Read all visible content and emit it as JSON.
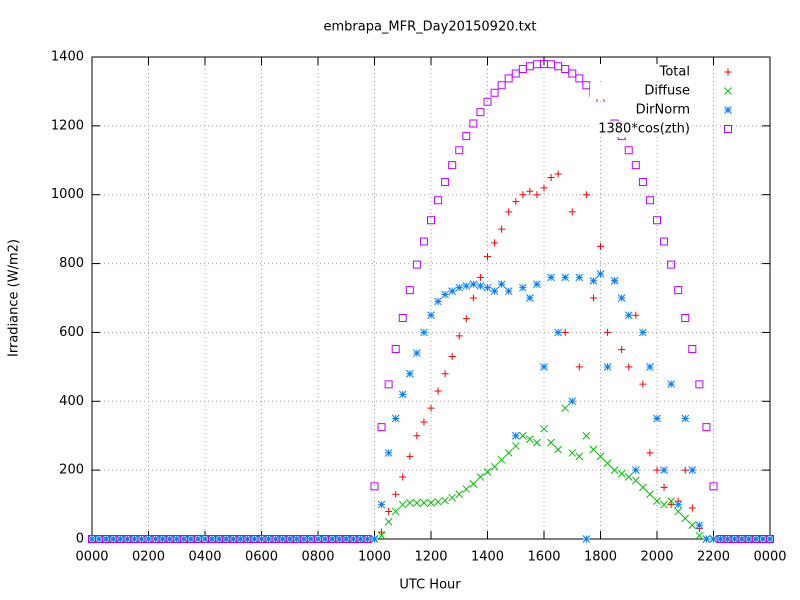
{
  "chart_data": {
    "type": "scatter",
    "title": "embrapa_MFR_Day20150920.txt",
    "xlabel": "UTC Hour",
    "ylabel": "Irradiance (W/m2)",
    "xlim": [
      0,
      24
    ],
    "ylim": [
      0,
      1400
    ],
    "xticks": [
      {
        "value": 0,
        "label": "0000"
      },
      {
        "value": 2,
        "label": "0200"
      },
      {
        "value": 4,
        "label": "0400"
      },
      {
        "value": 6,
        "label": "0600"
      },
      {
        "value": 8,
        "label": "0800"
      },
      {
        "value": 10,
        "label": "1000"
      },
      {
        "value": 12,
        "label": "1200"
      },
      {
        "value": 14,
        "label": "1400"
      },
      {
        "value": 16,
        "label": "1600"
      },
      {
        "value": 18,
        "label": "1800"
      },
      {
        "value": 20,
        "label": "2000"
      },
      {
        "value": 22,
        "label": "2200"
      },
      {
        "value": 24,
        "label": "0000"
      }
    ],
    "yticks": [
      0,
      200,
      400,
      600,
      800,
      1000,
      1200,
      1400
    ],
    "grid": true,
    "legend": "top-right",
    "x": [
      0,
      0.25,
      0.5,
      0.75,
      1,
      1.25,
      1.5,
      1.75,
      2,
      2.25,
      2.5,
      2.75,
      3,
      3.25,
      3.5,
      3.75,
      4,
      4.25,
      4.5,
      4.75,
      5,
      5.25,
      5.5,
      5.75,
      6,
      6.25,
      6.5,
      6.75,
      7,
      7.25,
      7.5,
      7.75,
      8,
      8.25,
      8.5,
      8.75,
      9,
      9.25,
      9.5,
      9.75,
      10,
      10.25,
      10.5,
      10.75,
      11,
      11.25,
      11.5,
      11.75,
      12,
      12.25,
      12.5,
      12.75,
      13,
      13.25,
      13.5,
      13.75,
      14,
      14.25,
      14.5,
      14.75,
      15,
      15.25,
      15.5,
      15.75,
      16,
      16.25,
      16.5,
      16.75,
      17,
      17.25,
      17.5,
      17.75,
      18,
      18.25,
      18.5,
      18.75,
      19,
      19.25,
      19.5,
      19.75,
      20,
      20.25,
      20.5,
      20.75,
      21,
      21.25,
      21.5,
      21.75,
      22,
      22.25,
      22.5,
      22.75,
      23,
      23.25,
      23.5,
      23.75,
      24
    ],
    "series": [
      {
        "name": "Total",
        "color": "#ff0000",
        "marker": "plus",
        "values": [
          0,
          0,
          0,
          0,
          0,
          0,
          0,
          0,
          0,
          0,
          0,
          0,
          0,
          0,
          0,
          0,
          0,
          0,
          0,
          0,
          0,
          0,
          0,
          0,
          0,
          0,
          0,
          0,
          0,
          0,
          0,
          0,
          0,
          0,
          0,
          0,
          0,
          0,
          0,
          0,
          0,
          20,
          80,
          130,
          180,
          240,
          300,
          340,
          380,
          430,
          480,
          530,
          590,
          640,
          700,
          760,
          820,
          860,
          900,
          950,
          980,
          1000,
          1010,
          1000,
          1020,
          1050,
          1060,
          600,
          950,
          500,
          1000,
          700,
          850,
          600,
          750,
          550,
          500,
          650,
          450,
          250,
          200,
          150,
          100,
          110,
          200,
          90,
          30,
          0,
          0,
          0,
          0,
          0,
          0,
          0,
          0,
          0,
          0
        ]
      },
      {
        "name": "Diffuse",
        "color": "#00c000",
        "marker": "cross",
        "values": [
          0,
          0,
          0,
          0,
          0,
          0,
          0,
          0,
          0,
          0,
          0,
          0,
          0,
          0,
          0,
          0,
          0,
          0,
          0,
          0,
          0,
          0,
          0,
          0,
          0,
          0,
          0,
          0,
          0,
          0,
          0,
          0,
          0,
          0,
          0,
          0,
          0,
          0,
          0,
          0,
          0,
          10,
          50,
          80,
          100,
          105,
          105,
          105,
          105,
          108,
          112,
          120,
          130,
          145,
          160,
          180,
          195,
          210,
          230,
          250,
          270,
          300,
          290,
          280,
          320,
          280,
          260,
          380,
          250,
          240,
          300,
          260,
          240,
          220,
          200,
          190,
          180,
          170,
          150,
          130,
          110,
          100,
          110,
          80,
          60,
          40,
          10,
          0,
          0,
          0,
          0,
          0,
          0,
          0,
          0,
          0,
          0
        ]
      },
      {
        "name": "DirNorm",
        "color": "#0080ff",
        "marker": "star",
        "values": [
          0,
          0,
          0,
          0,
          0,
          0,
          0,
          0,
          0,
          0,
          0,
          0,
          0,
          0,
          0,
          0,
          0,
          0,
          0,
          0,
          0,
          0,
          0,
          0,
          0,
          0,
          0,
          0,
          0,
          0,
          0,
          0,
          0,
          0,
          0,
          0,
          0,
          0,
          0,
          0,
          0,
          100,
          250,
          350,
          420,
          480,
          540,
          600,
          650,
          690,
          710,
          720,
          730,
          735,
          740,
          735,
          730,
          720,
          740,
          720,
          300,
          730,
          700,
          740,
          500,
          760,
          600,
          760,
          400,
          760,
          0,
          750,
          770,
          500,
          750,
          700,
          650,
          200,
          600,
          500,
          350,
          200,
          450,
          100,
          350,
          200,
          40,
          0,
          0,
          0,
          0,
          0,
          0,
          0,
          0,
          0,
          0
        ]
      },
      {
        "name": "1380*cos(zth)",
        "color": "#c000ff",
        "marker": "square",
        "values": [
          0,
          0,
          0,
          0,
          0,
          0,
          0,
          0,
          0,
          0,
          0,
          0,
          0,
          0,
          0,
          0,
          0,
          0,
          0,
          0,
          0,
          0,
          0,
          0,
          0,
          0,
          0,
          0,
          0,
          0,
          0,
          0,
          0,
          0,
          0,
          0,
          0,
          0,
          0,
          0,
          153,
          325,
          449,
          552,
          642,
          723,
          797,
          864,
          926,
          984,
          1037,
          1086,
          1129,
          1170,
          1207,
          1240,
          1270,
          1296,
          1318,
          1338,
          1352,
          1365,
          1373,
          1379,
          1380,
          1379,
          1373,
          1365,
          1352,
          1338,
          1318,
          1296,
          1270,
          1240,
          1207,
          1170,
          1129,
          1086,
          1037,
          984,
          926,
          864,
          797,
          723,
          642,
          552,
          449,
          325,
          153,
          0,
          0,
          0,
          0,
          0,
          0,
          0,
          0
        ]
      }
    ]
  }
}
